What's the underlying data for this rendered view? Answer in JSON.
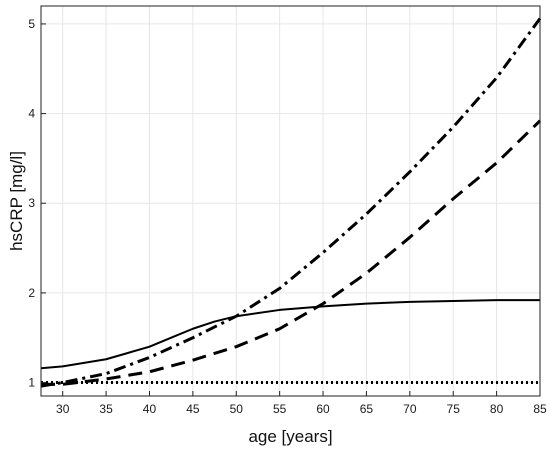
{
  "chart_data": {
    "type": "line",
    "title": "",
    "xlabel": "age [years]",
    "ylabel": "hsCRP [mg/l]",
    "xlim": [
      27.5,
      85
    ],
    "ylim": [
      0.85,
      5.2
    ],
    "grid": true,
    "x_ticks": [
      30,
      35,
      40,
      45,
      50,
      55,
      60,
      65,
      70,
      75,
      80,
      85
    ],
    "y_ticks": [
      1,
      2,
      3,
      4,
      5
    ],
    "series": [
      {
        "style": "solid",
        "points": [
          [
            27.5,
            1.16
          ],
          [
            30,
            1.18
          ],
          [
            35,
            1.26
          ],
          [
            40,
            1.4
          ],
          [
            42.5,
            1.5
          ],
          [
            45,
            1.6
          ],
          [
            47.5,
            1.68
          ],
          [
            50,
            1.74
          ],
          [
            55,
            1.81
          ],
          [
            60,
            1.85
          ],
          [
            65,
            1.88
          ],
          [
            70,
            1.9
          ],
          [
            75,
            1.91
          ],
          [
            80,
            1.92
          ],
          [
            85,
            1.92
          ]
        ]
      },
      {
        "style": "dash-dot",
        "points": [
          [
            27.5,
            0.96
          ],
          [
            30,
            1.0
          ],
          [
            35,
            1.1
          ],
          [
            40,
            1.28
          ],
          [
            45,
            1.5
          ],
          [
            50,
            1.74
          ],
          [
            55,
            2.05
          ],
          [
            60,
            2.45
          ],
          [
            65,
            2.88
          ],
          [
            70,
            3.35
          ],
          [
            75,
            3.85
          ],
          [
            80,
            4.4
          ],
          [
            85,
            5.06
          ]
        ]
      },
      {
        "style": "dashed",
        "points": [
          [
            27.5,
            0.98
          ],
          [
            30,
            0.98
          ],
          [
            35,
            1.04
          ],
          [
            40,
            1.12
          ],
          [
            45,
            1.25
          ],
          [
            50,
            1.4
          ],
          [
            55,
            1.6
          ],
          [
            60,
            1.88
          ],
          [
            65,
            2.22
          ],
          [
            70,
            2.62
          ],
          [
            75,
            3.05
          ],
          [
            80,
            3.45
          ],
          [
            85,
            3.92
          ]
        ]
      },
      {
        "style": "dotted",
        "points": [
          [
            27.5,
            1.0
          ],
          [
            85,
            1.0
          ]
        ]
      }
    ]
  }
}
